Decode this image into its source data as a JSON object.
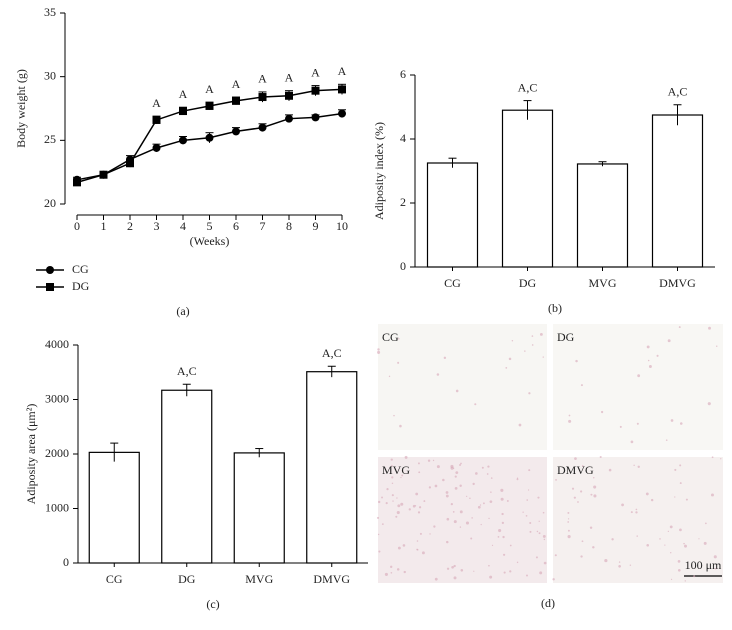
{
  "chart_data": [
    {
      "type": "line",
      "ylabel": "Body weight (g)",
      "xlabel": "(Weeks)",
      "label": "(a)",
      "x": [
        0,
        1,
        2,
        3,
        4,
        5,
        6,
        7,
        8,
        9,
        10
      ],
      "xlim": [
        0,
        10
      ],
      "xticks": [
        0,
        1,
        2,
        3,
        4,
        5,
        6,
        7,
        8,
        9,
        10
      ],
      "ylim": [
        20,
        35
      ],
      "yticks": [
        20,
        25,
        30,
        35
      ],
      "legend": "bottom left",
      "series": [
        {
          "name": "CG",
          "color": "#000000",
          "marker": "circle",
          "values": [
            21.9,
            22.3,
            23.5,
            24.4,
            25.0,
            25.2,
            25.7,
            26.0,
            26.7,
            26.8,
            27.1
          ],
          "errors": [
            0.2,
            0.2,
            0.3,
            0.3,
            0.3,
            0.4,
            0.3,
            0.3,
            0.3,
            0.2,
            0.3
          ]
        },
        {
          "name": "DG",
          "color": "#000000",
          "marker": "square",
          "values": [
            21.7,
            22.3,
            23.2,
            26.6,
            27.3,
            27.7,
            28.1,
            28.4,
            28.5,
            28.9,
            29.0
          ],
          "errors": [
            0.2,
            0.2,
            0.3,
            0.3,
            0.3,
            0.3,
            0.3,
            0.4,
            0.4,
            0.4,
            0.4
          ],
          "annotations": [
            null,
            null,
            null,
            "A",
            "A",
            "A",
            "A",
            "A",
            "A",
            "A",
            "A"
          ]
        }
      ]
    },
    {
      "type": "bar",
      "ylabel": "Adiposity index (%)",
      "label": "(b)",
      "categories": [
        "CG",
        "DG",
        "MVG",
        "DMVG"
      ],
      "values": [
        3.25,
        4.9,
        3.22,
        4.75
      ],
      "errors": [
        0.15,
        0.3,
        0.07,
        0.32
      ],
      "annotations": [
        null,
        "A,C",
        null,
        "A,C"
      ],
      "color": "#ffffff",
      "ylim": [
        0,
        6
      ],
      "yticks": [
        0,
        2,
        4,
        6
      ]
    },
    {
      "type": "bar",
      "ylabel": "Adiposity area (μm²)",
      "label": "(c)",
      "categories": [
        "CG",
        "DG",
        "MVG",
        "DMVG"
      ],
      "values": [
        2030,
        3170,
        2020,
        3510
      ],
      "errors": [
        170,
        110,
        80,
        100
      ],
      "annotations": [
        null,
        "A,C",
        null,
        "A,C"
      ],
      "color": "#ffffff",
      "ylim": [
        0,
        4000
      ],
      "yticks": [
        0,
        1000,
        2000,
        3000,
        4000
      ]
    }
  ],
  "micrographs": {
    "panels": [
      "CG",
      "DG",
      "MVG",
      "DMVG"
    ],
    "scale_bar": "100 μm",
    "label": "(d)"
  }
}
